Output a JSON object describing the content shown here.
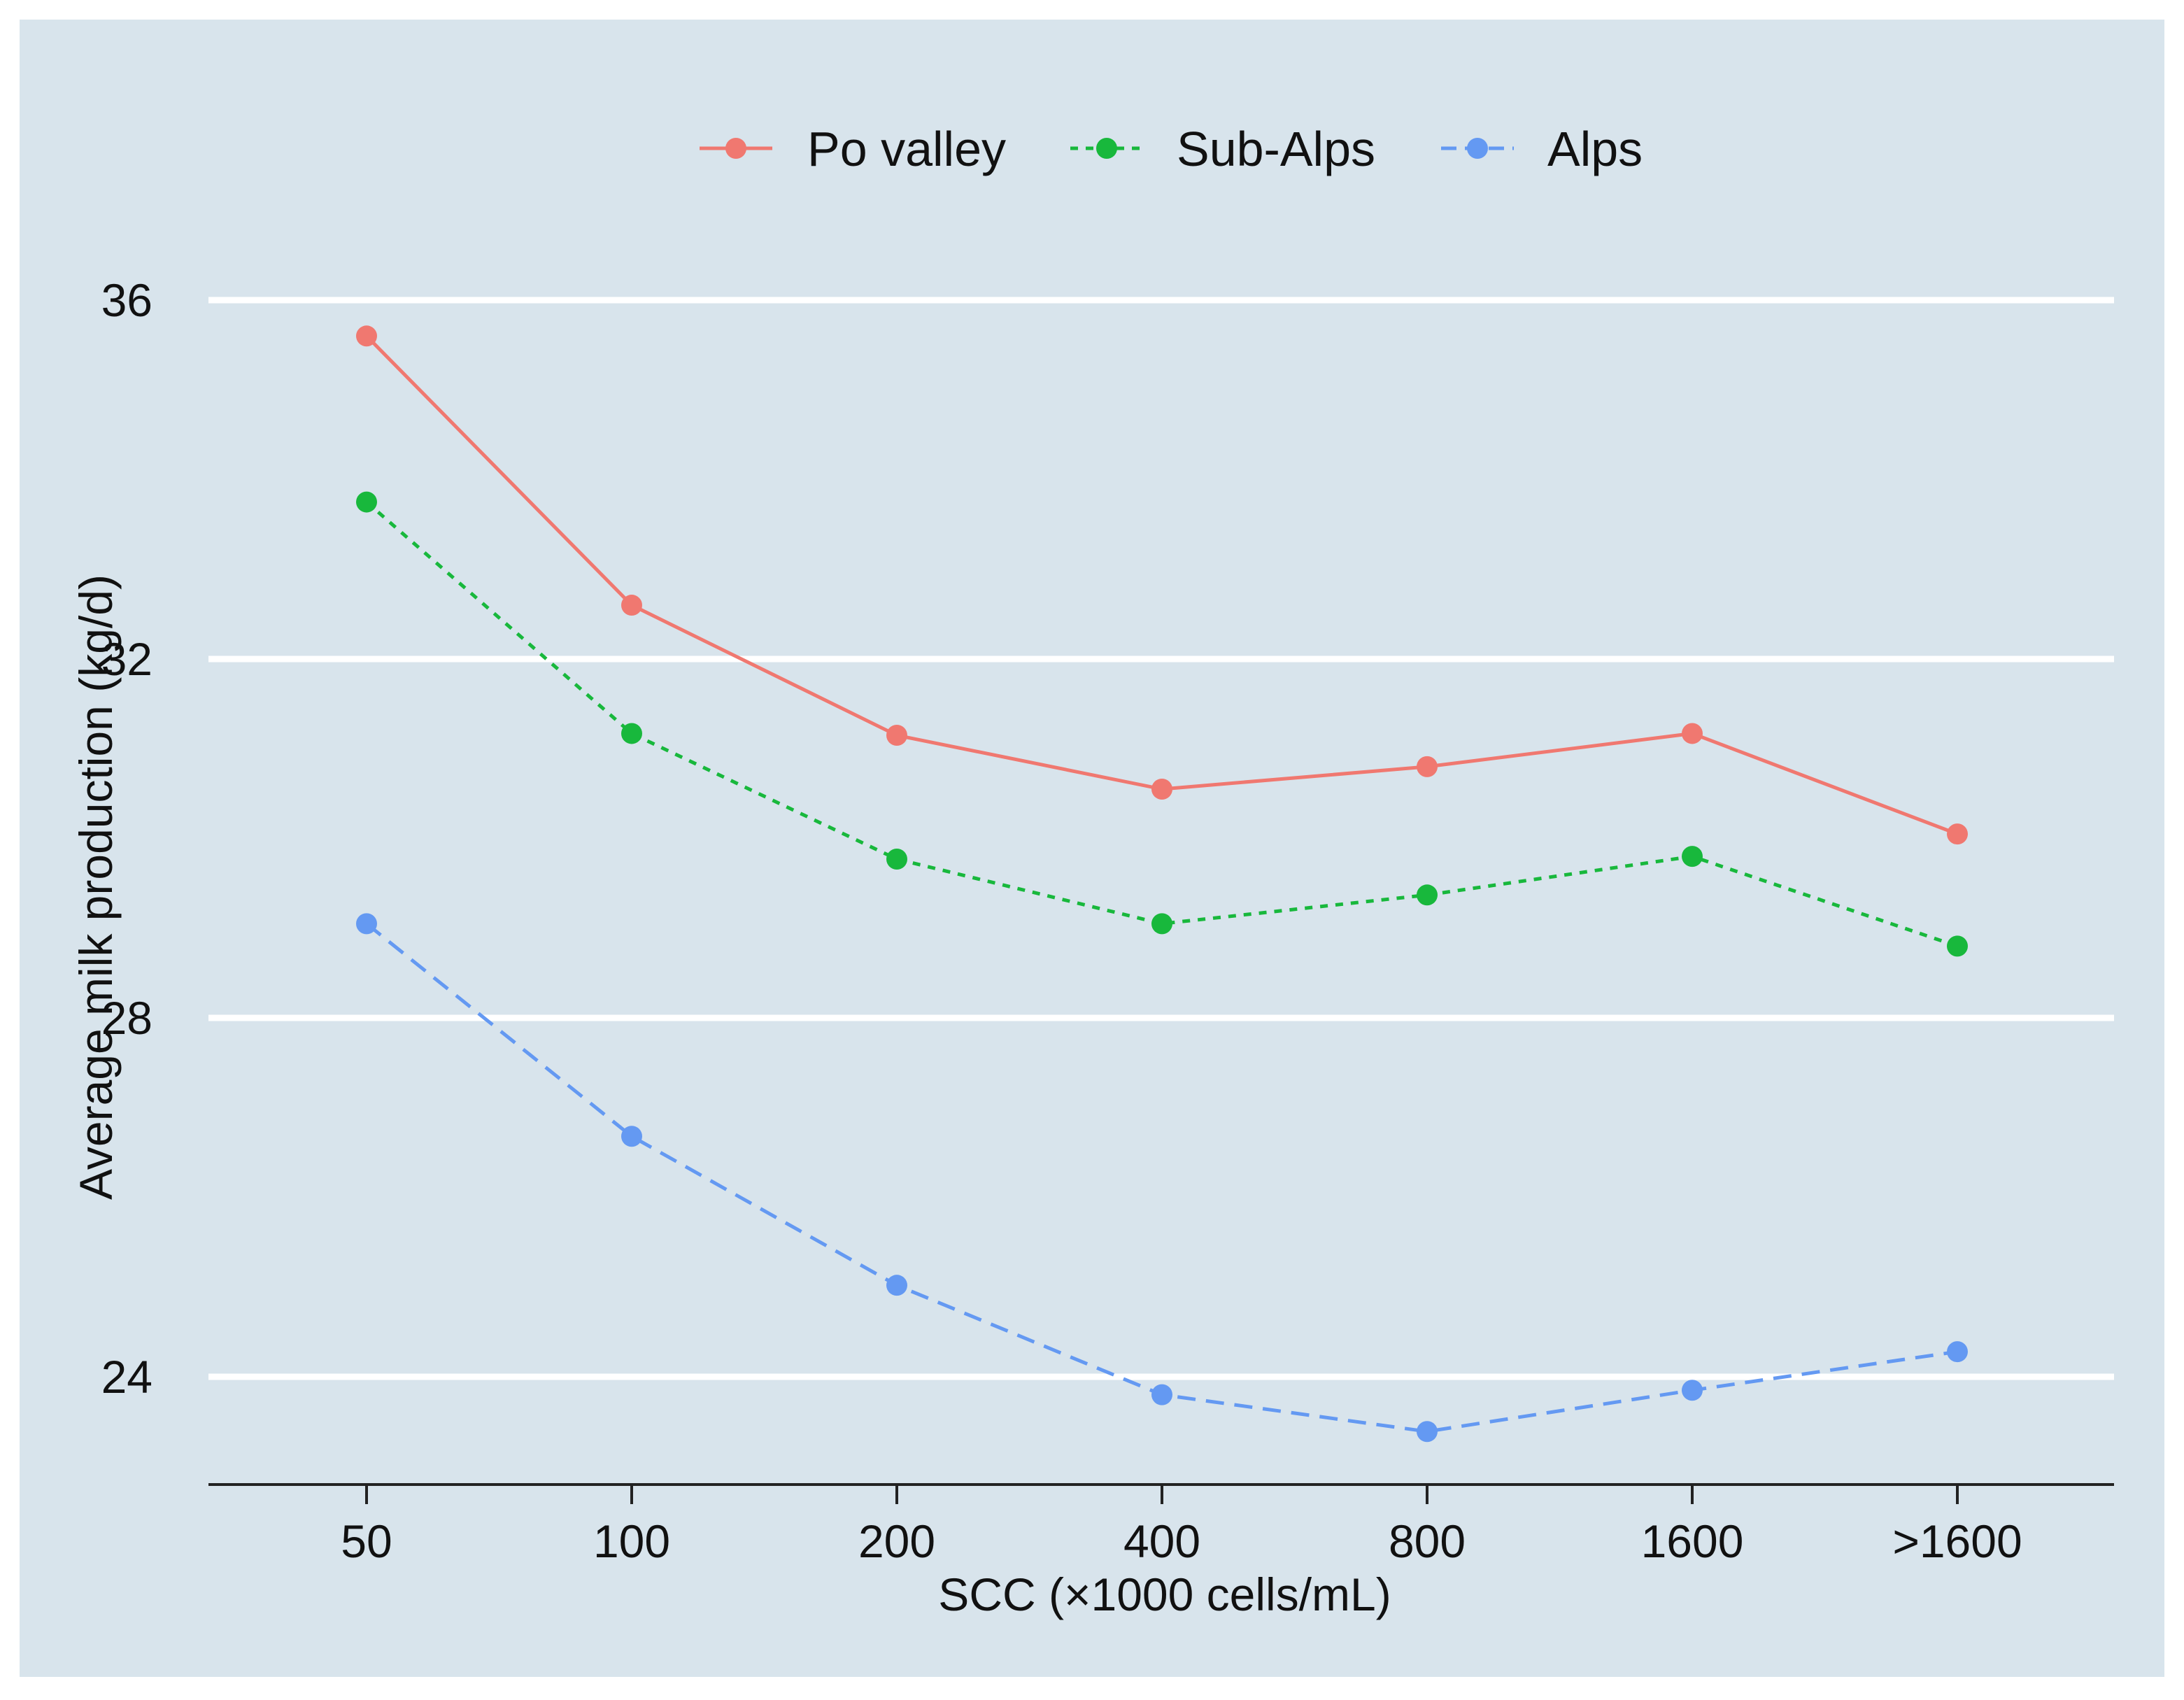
{
  "colors": {
    "panel_background": "#d8e4ec",
    "gridline": "#ffffff",
    "axis_line": "#222222",
    "po_valley": "#f07870",
    "sub_alps": "#18b83c",
    "alps": "#6499f2"
  },
  "chart_data": {
    "type": "line",
    "title": "",
    "xlabel": "SCC (×1000 cells/mL)",
    "ylabel": "Average milk production (kg/d)",
    "categories": [
      "50",
      "100",
      "200",
      "400",
      "800",
      "1600",
      ">1600"
    ],
    "yticks": [
      "24",
      "28",
      "32",
      "36"
    ],
    "ylim": [
      22.8,
      37.1
    ],
    "grid": "horizontal major lines",
    "legend_position": "top",
    "series": [
      {
        "name": "Po valley",
        "line_style": "solid",
        "color": "#f07870",
        "values": [
          35.6,
          32.6,
          31.15,
          30.55,
          30.8,
          31.17,
          30.05
        ]
      },
      {
        "name": "Sub-Alps",
        "line_style": "dotted",
        "color": "#18b83c",
        "values": [
          33.75,
          31.17,
          29.77,
          29.05,
          29.37,
          29.8,
          28.8
        ]
      },
      {
        "name": "Alps",
        "line_style": "dashed",
        "color": "#6499f2",
        "values": [
          29.05,
          26.68,
          25.02,
          23.8,
          23.39,
          23.85,
          24.28
        ]
      }
    ]
  }
}
